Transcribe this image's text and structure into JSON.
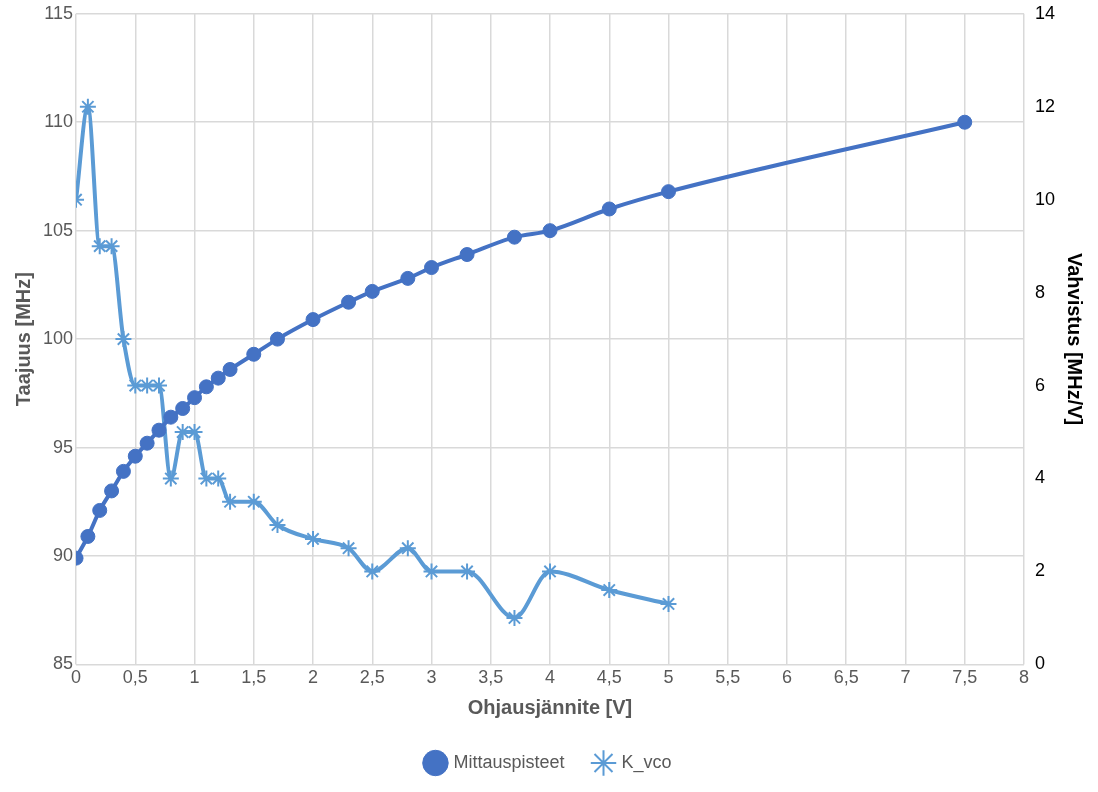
{
  "chart_data": {
    "type": "line",
    "xlabel": "Ohjausjännite [V]",
    "ylabel": "Taajuus [MHz]",
    "y2label": "Vahvistus [MHz/V]",
    "xlim": [
      0,
      8
    ],
    "xticks": [
      0,
      {
        "value": 0.5,
        "label": "0,5"
      },
      1,
      {
        "value": 1.5,
        "label": "1,5"
      },
      2,
      {
        "value": 2.5,
        "label": "2,5"
      },
      3,
      {
        "value": 3.5,
        "label": "3,5"
      },
      4,
      {
        "value": 4.5,
        "label": "4,5"
      },
      5,
      {
        "value": 5.5,
        "label": "5,5"
      },
      6,
      {
        "value": 6.5,
        "label": "6,5"
      },
      7,
      {
        "value": 7.5,
        "label": "7,5"
      },
      8
    ],
    "ylim": [
      85,
      115
    ],
    "yticks": [
      85,
      90,
      95,
      100,
      105,
      110,
      115
    ],
    "y2lim": [
      0,
      14
    ],
    "y2ticks": [
      0,
      2,
      4,
      6,
      8,
      10,
      12,
      14
    ],
    "grid": true,
    "legend": "bottom",
    "line_style": "solid",
    "series": [
      {
        "name": "Mittauspisteet",
        "color": "#4472c4",
        "marker": "circle",
        "x": [
          0,
          0.1,
          0.2,
          0.3,
          0.4,
          0.5,
          0.6,
          0.7,
          0.8,
          0.9,
          1,
          1.1,
          1.2,
          1.3,
          1.5,
          1.7,
          2,
          2.3,
          2.5,
          2.8,
          3,
          3.3,
          3.7,
          4,
          4.5,
          5,
          7.5
        ],
        "values": [
          89.9,
          90.9,
          92.1,
          93,
          93.9,
          94.6,
          95.2,
          95.8,
          96.4,
          96.8,
          97.3,
          97.8,
          98.2,
          98.6,
          99.3,
          100,
          100.9,
          101.7,
          102.2,
          102.8,
          103.3,
          103.9,
          104.7,
          105,
          106,
          106.8,
          110
        ]
      },
      {
        "name": "K_vco",
        "color": "#5b9bd5",
        "marker": "cross",
        "axis": "y2",
        "x": [
          0,
          0.1,
          0.2,
          0.3,
          0.4,
          0.5,
          0.6,
          0.7,
          0.8,
          0.9,
          1,
          1.1,
          1.2,
          1.3,
          1.5,
          1.7,
          2,
          2.3,
          2.5,
          2.8,
          3,
          3.3,
          3.7,
          4,
          4.5,
          5
        ],
        "values": [
          10,
          12,
          9,
          9,
          7,
          6,
          6,
          6,
          4,
          5,
          5,
          4,
          4,
          3.5,
          3.5,
          3,
          2.7,
          2.5,
          2,
          2.5,
          2,
          2,
          1,
          2,
          1.6,
          1.3
        ]
      }
    ]
  }
}
